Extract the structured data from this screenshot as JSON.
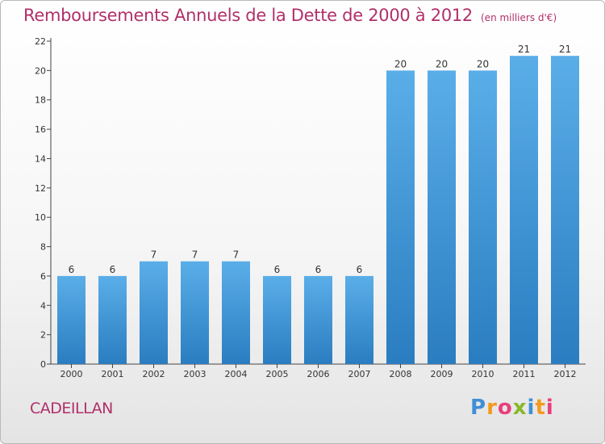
{
  "header": {
    "title": "Remboursements Annuels de la Dette de 2000 à 2012",
    "unit": "(en milliers d'€)"
  },
  "commune": "CADEILLAN",
  "logo": {
    "letters": [
      "P",
      "r",
      "o",
      "x",
      "i",
      "t",
      "i"
    ],
    "colors": [
      "#3f8fd6",
      "#f39a1e",
      "#e93f7c",
      "#89b928",
      "#3f8fd6",
      "#f39a1e",
      "#e93f7c"
    ]
  },
  "chart_data": {
    "type": "bar",
    "categories": [
      "2000",
      "2001",
      "2002",
      "2003",
      "2004",
      "2005",
      "2006",
      "2007",
      "2008",
      "2009",
      "2010",
      "2011",
      "2012"
    ],
    "values": [
      6,
      6,
      7,
      7,
      7,
      6,
      6,
      6,
      20,
      20,
      20,
      21,
      21
    ],
    "data_labels": [
      "6",
      "6",
      "7",
      "7",
      "7",
      "6",
      "6",
      "6",
      "20",
      "20",
      "20",
      "21",
      "21"
    ],
    "yticks": [
      0,
      2,
      4,
      6,
      8,
      10,
      12,
      14,
      16,
      18,
      20,
      22
    ],
    "ylim": [
      0,
      22
    ],
    "grid": false,
    "bar_color_top": "#5aaee8",
    "bar_color_bottom": "#2a7dc0",
    "title": "Remboursements Annuels de la Dette de 2000 à 2012",
    "xlabel": "",
    "ylabel": ""
  }
}
